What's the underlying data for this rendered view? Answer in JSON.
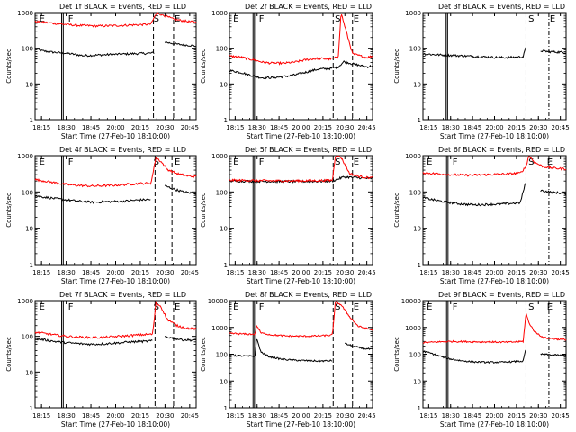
{
  "chart_data": [
    {
      "type": "line",
      "title": "Det 1f BLACK = Events, RED = LLD",
      "xlabel": "Start Time (27-Feb-10 18:10:00)",
      "ylabel": "Counts/sec",
      "y_scale": "log",
      "ylim": [
        1,
        1000
      ],
      "ytick_labels": [
        "1",
        "10",
        "100",
        "1000"
      ],
      "xtick_labels": [
        "18:15",
        "18:30",
        "18:45",
        "20:00",
        "20:15",
        "20:30",
        "20:45"
      ],
      "region_labels": [
        "E",
        "F",
        "S",
        "E"
      ],
      "series": [
        {
          "color": "#000000",
          "x": [
            0,
            0.04,
            0.1,
            0.2,
            0.3,
            0.45,
            0.6,
            0.7,
            0.74,
            0.76,
            0.8,
            0.88,
            0.96,
            1.0
          ],
          "y": [
            100,
            85,
            78,
            72,
            62,
            66,
            70,
            72,
            74,
            null,
            150,
            130,
            120,
            115
          ]
        },
        {
          "color": "#ff0000",
          "x": [
            0,
            0.08,
            0.16,
            0.26,
            0.4,
            0.55,
            0.66,
            0.72,
            0.745,
            0.76,
            0.78,
            0.86,
            0.95,
            1.0
          ],
          "y": [
            560,
            520,
            480,
            440,
            420,
            440,
            460,
            480,
            820,
            1000,
            900,
            650,
            560,
            540
          ]
        }
      ]
    },
    {
      "type": "line",
      "title": "Det 2f BLACK = Events, RED = LLD",
      "xlabel": "Start Time (27-Feb-10 18:10:00)",
      "ylabel": "Counts/sec",
      "y_scale": "log",
      "ylim": [
        1,
        1000
      ],
      "ytick_labels": [
        "1",
        "10",
        "100",
        "1000"
      ],
      "xtick_labels": [
        "18:15",
        "18:30",
        "18:45",
        "20:00",
        "20:15",
        "20:30",
        "20:45"
      ],
      "region_labels": [
        "E",
        "F",
        "S",
        "E"
      ],
      "series": [
        {
          "color": "#000000",
          "x": [
            0,
            0.05,
            0.1,
            0.16,
            0.22,
            0.3,
            0.38,
            0.46,
            0.55,
            0.62,
            0.7,
            0.76,
            0.8,
            0.88,
            0.96,
            1.0
          ],
          "y": [
            24,
            22,
            20,
            17,
            15,
            15,
            16,
            18,
            22,
            26,
            27,
            30,
            42,
            35,
            30,
            32
          ]
        },
        {
          "color": "#ff0000",
          "x": [
            0,
            0.08,
            0.16,
            0.24,
            0.3,
            0.38,
            0.46,
            0.54,
            0.62,
            0.7,
            0.76,
            0.78,
            0.8,
            0.86,
            0.92,
            0.96,
            1.0
          ],
          "y": [
            60,
            56,
            48,
            40,
            38,
            38,
            41,
            48,
            52,
            50,
            55,
            1000,
            500,
            70,
            60,
            55,
            60
          ]
        }
      ]
    },
    {
      "type": "line",
      "title": "Det 3f BLACK = Events, RED = LLD",
      "xlabel": "Start Time (27-Feb-10 18:10:00)",
      "ylabel": "Counts/sec",
      "y_scale": "log",
      "ylim": [
        1,
        1000
      ],
      "ytick_labels": [
        "1",
        "10",
        "100",
        "1000"
      ],
      "xtick_labels": [
        "18:15",
        "18:30",
        "18:45",
        "20:00",
        "20:15",
        "20:30",
        "20:45"
      ],
      "region_labels": [
        "S",
        "E"
      ],
      "series": [
        {
          "color": "#000000",
          "x": [
            0,
            0.08,
            0.16,
            0.24,
            0.32,
            0.4,
            0.48,
            0.56,
            0.64,
            0.7,
            0.72,
            0.76,
            0.82,
            0.88,
            0.94,
            1.0
          ],
          "y": [
            70,
            66,
            64,
            62,
            60,
            58,
            56,
            55,
            56,
            58,
            110,
            null,
            85,
            80,
            78,
            76
          ]
        }
      ]
    },
    {
      "type": "line",
      "title": "Det 4f BLACK = Events, RED = LLD",
      "xlabel": "Start Time (27-Feb-10 18:10:00)",
      "ylabel": "Counts/sec",
      "y_scale": "log",
      "ylim": [
        1,
        1000
      ],
      "ytick_labels": [
        "1",
        "10",
        "100",
        "1000"
      ],
      "xtick_labels": [
        "18:15",
        "18:30",
        "18:45",
        "20:00",
        "20:15",
        "20:30",
        "20:45"
      ],
      "region_labels": [
        "E",
        "F",
        "S",
        "E"
      ],
      "series": [
        {
          "color": "#000000",
          "x": [
            0,
            0.06,
            0.12,
            0.2,
            0.28,
            0.36,
            0.46,
            0.56,
            0.64,
            0.72,
            0.76,
            0.8,
            0.86,
            0.92,
            1.0
          ],
          "y": [
            78,
            72,
            66,
            60,
            55,
            52,
            54,
            56,
            60,
            62,
            null,
            150,
            120,
            100,
            90
          ]
        },
        {
          "color": "#ff0000",
          "x": [
            0,
            0.06,
            0.12,
            0.2,
            0.28,
            0.36,
            0.46,
            0.56,
            0.64,
            0.72,
            0.75,
            0.78,
            0.82,
            0.88,
            0.94,
            1.0
          ],
          "y": [
            220,
            200,
            180,
            160,
            150,
            145,
            150,
            160,
            170,
            175,
            900,
            700,
            420,
            320,
            280,
            260
          ]
        }
      ]
    },
    {
      "type": "line",
      "title": "Det 5f BLACK = Events, RED = LLD",
      "xlabel": "Start Time (27-Feb-10 18:10:00)",
      "ylabel": "Counts/sec",
      "y_scale": "log",
      "ylim": [
        1,
        1000
      ],
      "ytick_labels": [
        "1",
        "10",
        "100",
        "1000"
      ],
      "xtick_labels": [
        "18:15",
        "18:30",
        "18:45",
        "20:00",
        "20:15",
        "20:30",
        "20:45"
      ],
      "region_labels": [
        "E",
        "F",
        "S",
        "E"
      ],
      "series": [
        {
          "color": "#000000",
          "x": [
            0,
            0.1,
            0.2,
            0.3,
            0.4,
            0.5,
            0.6,
            0.7,
            0.72,
            0.8,
            0.88,
            0.94,
            1.0
          ],
          "y": [
            200,
            198,
            196,
            195,
            194,
            195,
            196,
            198,
            200,
            260,
            250,
            240,
            235
          ]
        },
        {
          "color": "#ff0000",
          "x": [
            0,
            0.1,
            0.2,
            0.3,
            0.4,
            0.5,
            0.6,
            0.7,
            0.72,
            0.74,
            0.78,
            0.84,
            0.9,
            0.96,
            1.0
          ],
          "y": [
            210,
            208,
            205,
            203,
            202,
            203,
            205,
            208,
            210,
            1000,
            900,
            320,
            270,
            250,
            245
          ]
        }
      ]
    },
    {
      "type": "line",
      "title": "Det 6f BLACK = Events, RED = LLD",
      "xlabel": "Start Time (27-Feb-10 18:10:00)",
      "ylabel": "Counts/sec",
      "y_scale": "log",
      "ylim": [
        1,
        1000
      ],
      "ytick_labels": [
        "1",
        "10",
        "100",
        "1000"
      ],
      "xtick_labels": [
        "18:15",
        "18:30",
        "18:45",
        "20:00",
        "20:15",
        "20:30",
        "20:45"
      ],
      "region_labels": [
        "E",
        "F",
        "S",
        "E"
      ],
      "series": [
        {
          "color": "#000000",
          "x": [
            0,
            0.06,
            0.12,
            0.2,
            0.28,
            0.36,
            0.44,
            0.52,
            0.6,
            0.68,
            0.72,
            0.76,
            0.82,
            0.88,
            0.94,
            1.0
          ],
          "y": [
            70,
            62,
            56,
            50,
            46,
            44,
            45,
            46,
            48,
            50,
            200,
            null,
            110,
            100,
            95,
            90
          ]
        },
        {
          "color": "#ff0000",
          "x": [
            0,
            0.08,
            0.16,
            0.24,
            0.32,
            0.4,
            0.5,
            0.6,
            0.68,
            0.72,
            0.74,
            0.78,
            0.84,
            0.9,
            0.96,
            1.0
          ],
          "y": [
            340,
            320,
            305,
            295,
            290,
            295,
            305,
            315,
            330,
            500,
            1000,
            650,
            500,
            460,
            440,
            430
          ]
        }
      ]
    },
    {
      "type": "line",
      "title": "Det 7f BLACK = Events, RED = LLD",
      "xlabel": "Start Time (27-Feb-10 18:10:00)",
      "ylabel": "Counts/sec",
      "y_scale": "log",
      "ylim": [
        1,
        1000
      ],
      "ytick_labels": [
        "1",
        "10",
        "100",
        "1000"
      ],
      "xtick_labels": [
        "18:15",
        "18:30",
        "18:45",
        "20:00",
        "20:15",
        "20:30",
        "20:45"
      ],
      "region_labels": [
        "E",
        "F",
        "S",
        "E"
      ],
      "series": [
        {
          "color": "#000000",
          "x": [
            0,
            0.06,
            0.12,
            0.2,
            0.28,
            0.36,
            0.44,
            0.52,
            0.6,
            0.68,
            0.73,
            0.76,
            0.8,
            0.86,
            0.92,
            1.0
          ],
          "y": [
            85,
            80,
            72,
            66,
            62,
            60,
            62,
            66,
            70,
            72,
            75,
            null,
            100,
            88,
            80,
            78
          ]
        },
        {
          "color": "#ff0000",
          "x": [
            0,
            0.06,
            0.12,
            0.2,
            0.28,
            0.36,
            0.44,
            0.52,
            0.6,
            0.68,
            0.73,
            0.75,
            0.78,
            0.82,
            0.88,
            0.94,
            1.0
          ],
          "y": [
            130,
            120,
            110,
            100,
            95,
            92,
            95,
            100,
            106,
            112,
            115,
            850,
            700,
            300,
            200,
            170,
            160
          ]
        }
      ]
    },
    {
      "type": "line",
      "title": "Det 8f BLACK = Events, RED = LLD",
      "xlabel": "Start Time (27-Feb-10 18:10:00)",
      "ylabel": "Counts/sec",
      "y_scale": "log",
      "ylim": [
        1,
        10000
      ],
      "ytick_labels": [
        "1",
        "10",
        "100",
        "1000",
        "10000"
      ],
      "xtick_labels": [
        "18:15",
        "18:30",
        "18:45",
        "20:00",
        "20:15",
        "20:30",
        "20:45"
      ],
      "region_labels": [
        "E",
        "F",
        "S",
        "E"
      ],
      "series": [
        {
          "color": "#000000",
          "x": [
            0,
            0.06,
            0.12,
            0.18,
            0.19,
            0.22,
            0.28,
            0.36,
            0.44,
            0.52,
            0.6,
            0.68,
            0.72,
            0.76,
            0.8,
            0.86,
            0.92,
            1.0
          ],
          "y": [
            90,
            88,
            85,
            84,
            400,
            120,
            80,
            66,
            60,
            58,
            56,
            56,
            58,
            null,
            260,
            200,
            170,
            150
          ]
        },
        {
          "color": "#ff0000",
          "x": [
            0,
            0.06,
            0.12,
            0.18,
            0.19,
            0.22,
            0.3,
            0.4,
            0.5,
            0.6,
            0.68,
            0.72,
            0.74,
            0.78,
            0.84,
            0.9,
            0.96,
            1.0
          ],
          "y": [
            600,
            580,
            560,
            560,
            1200,
            620,
            520,
            480,
            470,
            480,
            500,
            520,
            9000,
            7000,
            2500,
            1100,
            900,
            800
          ]
        }
      ]
    },
    {
      "type": "line",
      "title": "Det 9f BLACK = Events, RED = LLD",
      "xlabel": "Start Time (27-Feb-10 18:10:00)",
      "ylabel": "Counts/sec",
      "y_scale": "log",
      "ylim": [
        1,
        10000
      ],
      "ytick_labels": [
        "1",
        "10",
        "100",
        "1000",
        "10000"
      ],
      "xtick_labels": [
        "18:15",
        "18:30",
        "18:45",
        "20:00",
        "20:15",
        "20:30",
        "20:45"
      ],
      "region_labels": [
        "E",
        "F",
        "S",
        "E"
      ],
      "series": [
        {
          "color": "#000000",
          "x": [
            0,
            0.04,
            0.1,
            0.18,
            0.26,
            0.34,
            0.44,
            0.54,
            0.62,
            0.7,
            0.72,
            0.76,
            0.82,
            0.88,
            0.94,
            1.0
          ],
          "y": [
            130,
            115,
            90,
            68,
            58,
            52,
            50,
            50,
            52,
            55,
            170,
            null,
            100,
            96,
            92,
            90
          ]
        },
        {
          "color": "#ff0000",
          "x": [
            0,
            0.06,
            0.12,
            0.2,
            0.3,
            0.4,
            0.5,
            0.6,
            0.7,
            0.72,
            0.74,
            0.78,
            0.84,
            0.9,
            0.96,
            1.0
          ],
          "y": [
            270,
            280,
            290,
            300,
            295,
            290,
            285,
            280,
            300,
            3500,
            1500,
            700,
            420,
            380,
            360,
            350
          ]
        }
      ]
    }
  ]
}
